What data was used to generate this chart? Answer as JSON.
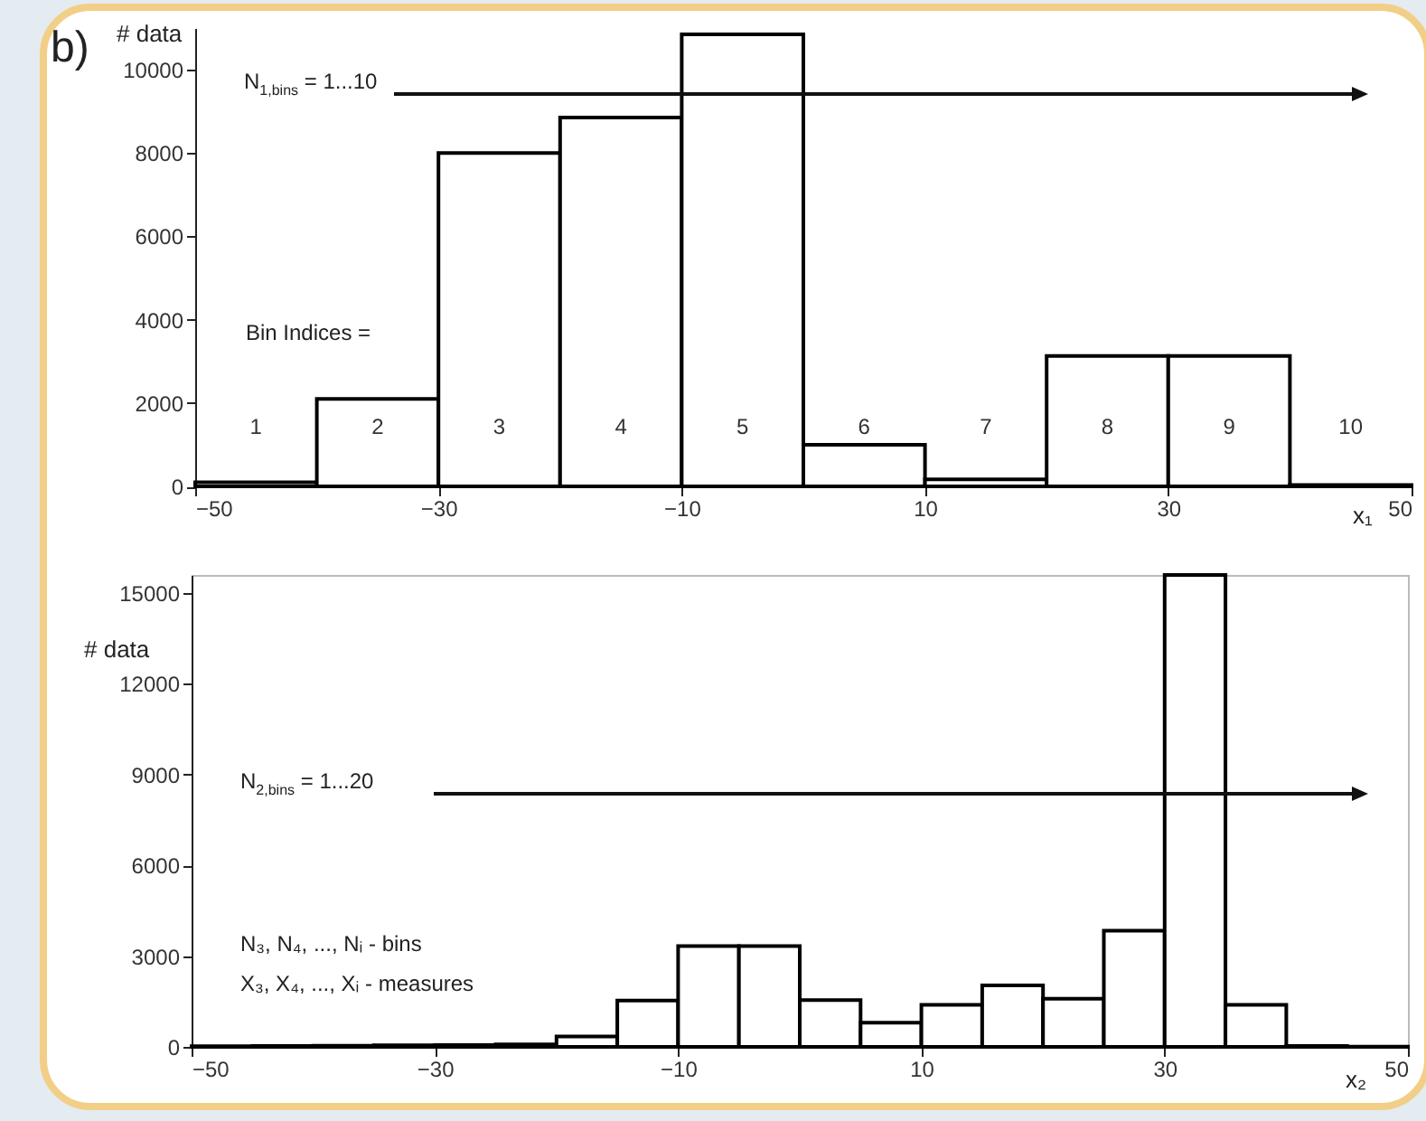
{
  "chart_data": [
    {
      "type": "histogram",
      "xlabel": "x₁",
      "ylabel": "# data",
      "color": "#000000",
      "bins": [
        -50,
        -40,
        -30,
        -20,
        -10,
        0,
        10,
        20,
        30,
        40,
        50
      ],
      "values": [
        100,
        2100,
        8000,
        8850,
        10850,
        1000,
        170,
        3130,
        3130,
        30
      ],
      "xlim": [
        -50,
        50
      ],
      "xticks": [
        -50,
        -30,
        -10,
        10,
        30,
        50
      ],
      "ylim": [
        0,
        11000
      ],
      "yticks": [
        0,
        2000,
        4000,
        6000,
        8000,
        10000
      ],
      "annotations": [
        "b)",
        "N$_{1,bins}$ = 1...10",
        "Bin Indices =",
        "1",
        "2",
        "3",
        "4",
        "5",
        "6",
        "7",
        "8",
        "9",
        "10"
      ]
    },
    {
      "type": "histogram",
      "xlabel": "x₂",
      "ylabel": "# data",
      "color": "#000000",
      "bins": [
        -50,
        -45,
        -40,
        -35,
        -30,
        -25,
        -20,
        -15,
        -10,
        -5,
        0,
        5,
        10,
        15,
        20,
        25,
        30,
        35,
        40,
        45,
        50
      ],
      "values": [
        20,
        30,
        40,
        50,
        60,
        80,
        340,
        1530,
        3330,
        3330,
        1550,
        800,
        1390,
        2030,
        1590,
        3840,
        15600,
        1390,
        30,
        10
      ],
      "xlim": [
        -50,
        50
      ],
      "xticks": [
        -50,
        -30,
        -10,
        10,
        30,
        50
      ],
      "ylim": [
        0,
        15600
      ],
      "yticks": [
        0,
        3000,
        6000,
        9000,
        12000,
        15000
      ],
      "annotations": [
        "N$_{2,bins}$ = 1...20",
        "N₃, N₄, ..., Nᵢ - bins",
        "X₃, X₄, ..., Xᵢ - measures"
      ]
    }
  ]
}
